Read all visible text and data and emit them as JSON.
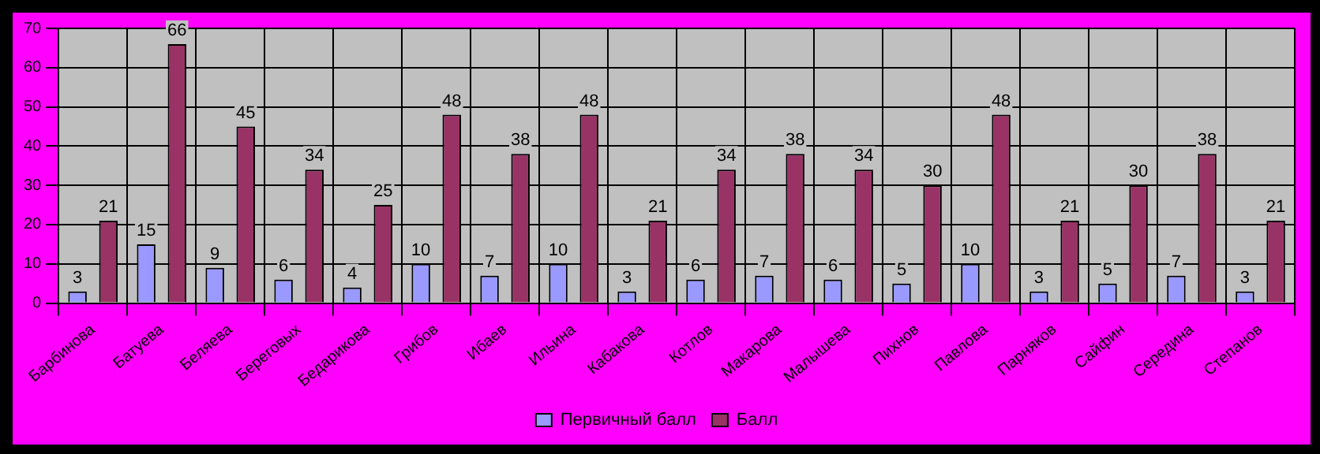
{
  "chart_data": {
    "type": "bar",
    "categories": [
      "Барбинова",
      "Батуева",
      "Беляева",
      "Береговых",
      "Бедарикова",
      "Грибов",
      "Ибаев",
      "Ильина",
      "Кабакова",
      "Котлов",
      "Макарова",
      "Малышева",
      "Пихнов",
      "Павлова",
      "Парняков",
      "Сайфин",
      "Середина",
      "Степанов"
    ],
    "series": [
      {
        "name": "Первичный балл",
        "color": "#9999ff",
        "values": [
          3,
          15,
          9,
          6,
          4,
          10,
          7,
          10,
          3,
          6,
          7,
          6,
          5,
          10,
          3,
          5,
          7,
          3
        ]
      },
      {
        "name": "Балл",
        "color": "#993366",
        "values": [
          21,
          66,
          45,
          34,
          25,
          48,
          38,
          48,
          21,
          34,
          38,
          34,
          30,
          48,
          21,
          30,
          38,
          21
        ]
      }
    ],
    "ylim": [
      0,
      70
    ],
    "yticks": [
      0,
      10,
      20,
      30,
      40,
      50,
      60,
      70
    ],
    "grid": true,
    "legend": "bottom",
    "data_labels": true
  }
}
